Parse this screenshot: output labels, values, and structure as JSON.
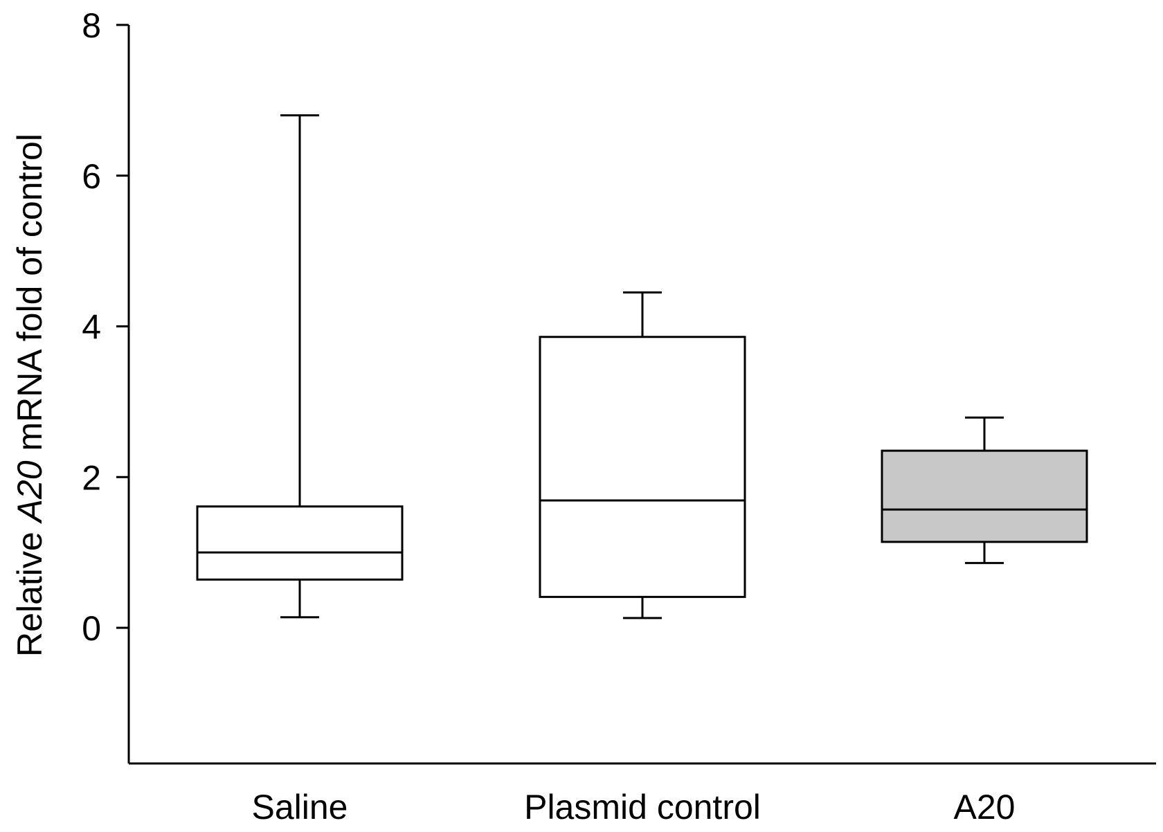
{
  "chart_data": {
    "type": "box",
    "title": "",
    "ylabel_parts": [
      {
        "text": "Relative ",
        "italic": false
      },
      {
        "text": "A20",
        "italic": true
      },
      {
        "text": " mRNA fold of control",
        "italic": false
      }
    ],
    "xlabel": "",
    "ylim": [
      -1.8,
      8
    ],
    "yticks": [
      0,
      2,
      4,
      6,
      8
    ],
    "grid": false,
    "categories": [
      "Saline",
      "Plasmid control",
      "A20"
    ],
    "boxes": [
      {
        "name": "Saline",
        "whisker_low": 0.14,
        "q1": 0.64,
        "median": 1.0,
        "q3": 1.61,
        "whisker_high": 6.8,
        "fill": "#ffffff"
      },
      {
        "name": "Plasmid control",
        "whisker_low": 0.13,
        "q1": 0.41,
        "median": 1.69,
        "q3": 3.86,
        "whisker_high": 4.45,
        "fill": "#ffffff"
      },
      {
        "name": "A20",
        "whisker_low": 0.86,
        "q1": 1.14,
        "median": 1.57,
        "q3": 2.35,
        "whisker_high": 2.79,
        "fill": "#c8c8c8"
      }
    ]
  }
}
